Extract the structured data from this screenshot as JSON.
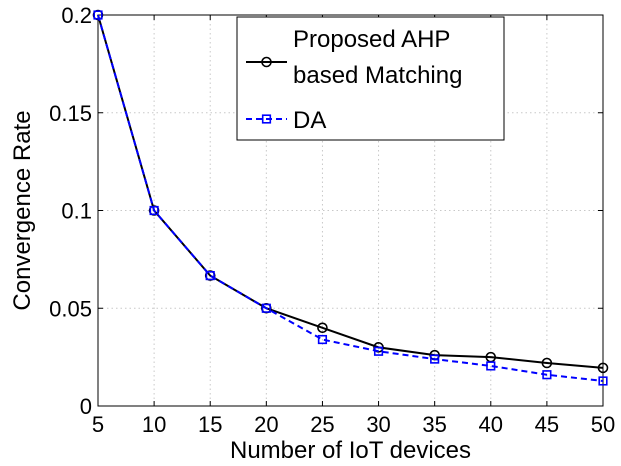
{
  "chart_data": {
    "type": "line",
    "title": "",
    "xlabel": "Number of IoT devices",
    "ylabel": "Convergence Rate",
    "x": [
      5,
      10,
      15,
      20,
      25,
      30,
      35,
      40,
      45,
      50
    ],
    "xlim": [
      5,
      50
    ],
    "ylim": [
      0,
      0.2
    ],
    "xticks": [
      5,
      10,
      15,
      20,
      25,
      30,
      35,
      40,
      45,
      50
    ],
    "yticks": [
      0,
      0.05,
      0.1,
      0.15,
      0.2
    ],
    "xtick_labels": [
      "5",
      "10",
      "15",
      "20",
      "25",
      "30",
      "35",
      "40",
      "45",
      "50"
    ],
    "ytick_labels": [
      "0",
      "0.05",
      "0.1",
      "0.15",
      "0.2"
    ],
    "grid": true,
    "legend_position": "top-right",
    "series": [
      {
        "name": "Proposed AHP based Matching",
        "legend_lines": [
          "Proposed AHP",
          "based Matching"
        ],
        "color": "#000000",
        "line_style": "solid",
        "marker": "circle",
        "values": [
          0.2,
          0.1,
          0.0667,
          0.05,
          0.04,
          0.03,
          0.026,
          0.025,
          0.022,
          0.0195
        ]
      },
      {
        "name": "DA",
        "legend_lines": [
          "DA"
        ],
        "color": "#0000ff",
        "line_style": "dashed",
        "marker": "square",
        "values": [
          0.2,
          0.1,
          0.0667,
          0.05,
          0.034,
          0.028,
          0.024,
          0.0205,
          0.016,
          0.0128
        ]
      }
    ]
  }
}
